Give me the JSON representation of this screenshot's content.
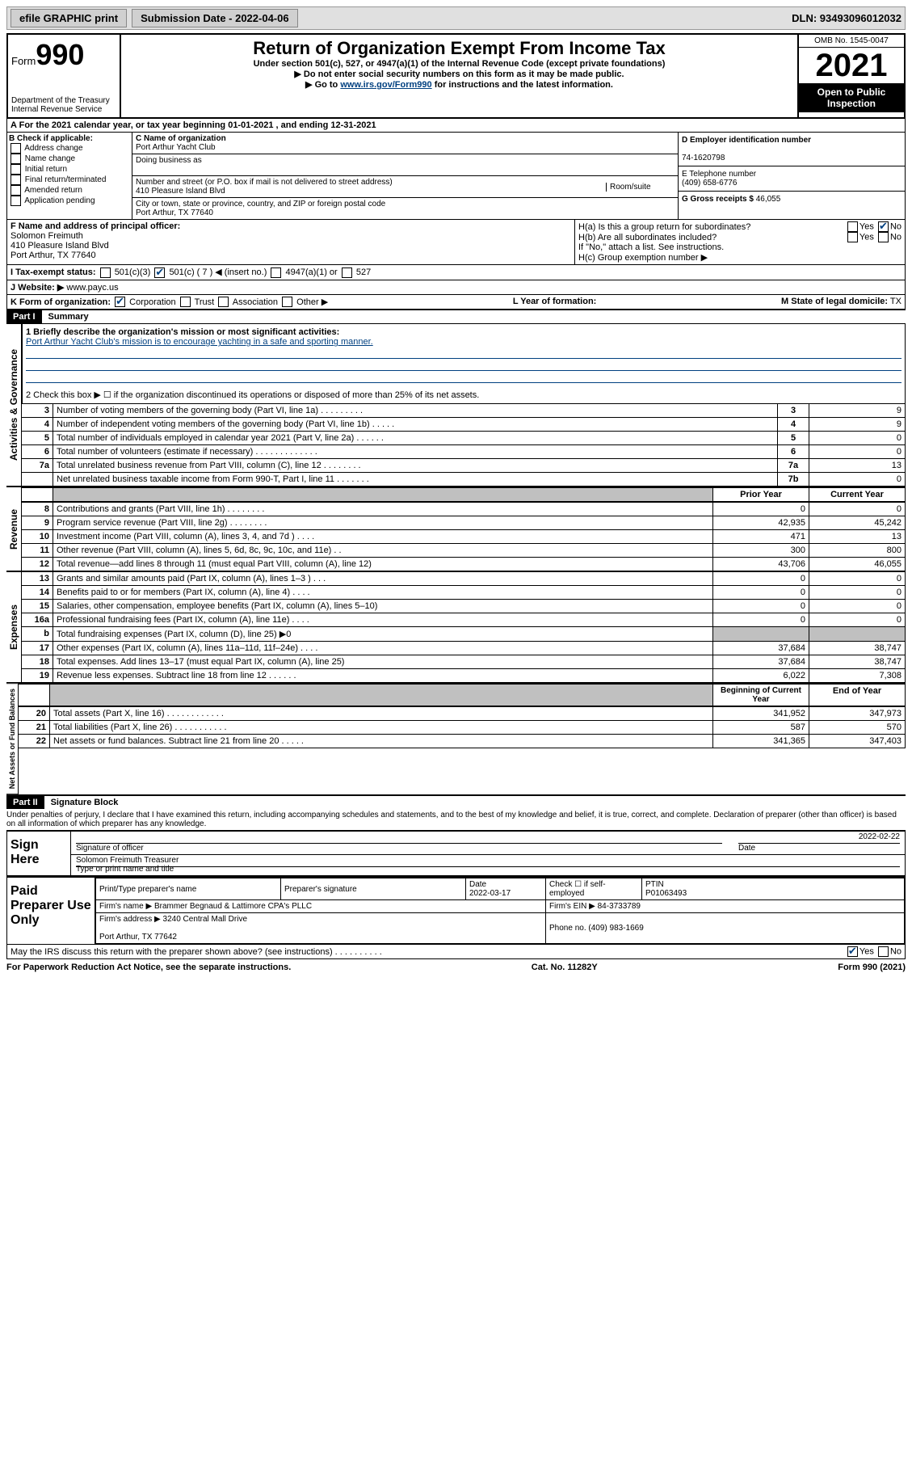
{
  "topbar": {
    "efile": "efile GRAPHIC print",
    "submission_label": "Submission Date - 2022-04-06",
    "dln": "DLN: 93493096012032"
  },
  "header": {
    "form_label": "Form",
    "form_number": "990",
    "dept": "Department of the Treasury",
    "irs": "Internal Revenue Service",
    "title": "Return of Organization Exempt From Income Tax",
    "subtitle": "Under section 501(c), 527, or 4947(a)(1) of the Internal Revenue Code (except private foundations)",
    "note1": "▶ Do not enter social security numbers on this form as it may be made public.",
    "note2_pre": "▶ Go to ",
    "note2_link": "www.irs.gov/Form990",
    "note2_post": " for instructions and the latest information.",
    "omb": "OMB No. 1545-0047",
    "year": "2021",
    "open": "Open to Public Inspection"
  },
  "lineA": "For the 2021 calendar year, or tax year beginning 01-01-2021   , and ending 12-31-2021",
  "boxB": {
    "title": "B Check if applicable:",
    "opts": [
      "Address change",
      "Name change",
      "Initial return",
      "Final return/terminated",
      "Amended return",
      "Application pending"
    ]
  },
  "boxC": {
    "label_name": "C Name of organization",
    "name": "Port Arthur Yacht Club",
    "dba_label": "Doing business as",
    "dba": "",
    "addr_label": "Number and street (or P.O. box if mail is not delivered to street address)",
    "room_label": "Room/suite",
    "addr": "410 Pleasure Island Blvd",
    "city_label": "City or town, state or province, country, and ZIP or foreign postal code",
    "city": "Port Arthur, TX  77640"
  },
  "boxD": {
    "label": "D Employer identification number",
    "value": "74-1620798"
  },
  "boxE": {
    "label": "E Telephone number",
    "value": "(409) 658-6776"
  },
  "boxG": {
    "label": "G Gross receipts $",
    "value": "46,055"
  },
  "boxF": {
    "label": "F Name and address of principal officer:",
    "name": "Solomon Freimuth",
    "addr1": "410 Pleasure Island Blvd",
    "addr2": "Port Arthur, TX  77640"
  },
  "boxH": {
    "ha": "H(a)  Is this a group return for subordinates?",
    "ha_yes": "Yes",
    "ha_no": "No",
    "hb": "H(b)  Are all subordinates included?",
    "hb_yes": "Yes",
    "hb_no": "No",
    "hb_note": "If \"No,\" attach a list. See instructions.",
    "hc": "H(c)  Group exemption number ▶"
  },
  "lineI": {
    "label": "I   Tax-exempt status:",
    "c1": "501(c)(3)",
    "c2": "501(c) ( 7 ) ◀ (insert no.)",
    "c3": "4947(a)(1) or",
    "c4": "527"
  },
  "lineJ": {
    "label": "J   Website: ▶",
    "value": "www.payc.us"
  },
  "lineK": {
    "label": "K Form of organization:",
    "o1": "Corporation",
    "o2": "Trust",
    "o3": "Association",
    "o4": "Other ▶"
  },
  "lineL": {
    "label": "L Year of formation:",
    "value": ""
  },
  "lineM": {
    "label": "M State of legal domicile:",
    "value": "TX"
  },
  "part1": {
    "header": "Part I",
    "title": "Summary",
    "q1_label": "1  Briefly describe the organization's mission or most significant activities:",
    "q1_text": "Port Arthur Yacht Club's mission is to encourage yachting in a safe and sporting manner.",
    "q2": "2   Check this box ▶ ☐  if the organization discontinued its operations or disposed of more than 25% of its net assets.",
    "rows_gov": [
      {
        "n": "3",
        "t": "Number of voting members of the governing body (Part VI, line 1a)  .   .   .   .   .   .   .   .   .",
        "k": "3",
        "v": "9"
      },
      {
        "n": "4",
        "t": "Number of independent voting members of the governing body (Part VI, line 1b)   .   .   .   .   .",
        "k": "4",
        "v": "9"
      },
      {
        "n": "5",
        "t": "Total number of individuals employed in calendar year 2021 (Part V, line 2a)   .   .   .   .   .   .",
        "k": "5",
        "v": "0"
      },
      {
        "n": "6",
        "t": "Total number of volunteers (estimate if necessary)   .   .   .   .   .   .   .   .   .   .   .   .   .",
        "k": "6",
        "v": "0"
      },
      {
        "n": "7a",
        "t": "Total unrelated business revenue from Part VIII, column (C), line 12   .   .   .   .   .   .   .   .",
        "k": "7a",
        "v": "13"
      },
      {
        "n": "",
        "t": "Net unrelated business taxable income from Form 990-T, Part I, line 11   .   .   .   .   .   .   .",
        "k": "7b",
        "v": "0"
      }
    ],
    "prior_label": "Prior Year",
    "current_label": "Current Year",
    "rows_rev": [
      {
        "n": "8",
        "t": "Contributions and grants (Part VIII, line 1h)   .   .   .   .   .   .   .   .",
        "p": "0",
        "c": "0"
      },
      {
        "n": "9",
        "t": "Program service revenue (Part VIII, line 2g)   .   .   .   .   .   .   .   .",
        "p": "42,935",
        "c": "45,242"
      },
      {
        "n": "10",
        "t": "Investment income (Part VIII, column (A), lines 3, 4, and 7d )   .   .   .   .",
        "p": "471",
        "c": "13"
      },
      {
        "n": "11",
        "t": "Other revenue (Part VIII, column (A), lines 5, 6d, 8c, 9c, 10c, and 11e)   .   .",
        "p": "300",
        "c": "800"
      },
      {
        "n": "12",
        "t": "Total revenue—add lines 8 through 11 (must equal Part VIII, column (A), line 12)",
        "p": "43,706",
        "c": "46,055"
      }
    ],
    "rows_exp": [
      {
        "n": "13",
        "t": "Grants and similar amounts paid (Part IX, column (A), lines 1–3 )   .   .   .",
        "p": "0",
        "c": "0"
      },
      {
        "n": "14",
        "t": "Benefits paid to or for members (Part IX, column (A), line 4)   .   .   .   .",
        "p": "0",
        "c": "0"
      },
      {
        "n": "15",
        "t": "Salaries, other compensation, employee benefits (Part IX, column (A), lines 5–10)",
        "p": "0",
        "c": "0"
      },
      {
        "n": "16a",
        "t": "Professional fundraising fees (Part IX, column (A), line 11e)   .   .   .   .",
        "p": "0",
        "c": "0"
      },
      {
        "n": "b",
        "t": "Total fundraising expenses (Part IX, column (D), line 25) ▶0",
        "p": "",
        "c": "",
        "shade": true
      },
      {
        "n": "17",
        "t": "Other expenses (Part IX, column (A), lines 11a–11d, 11f–24e)   .   .   .   .",
        "p": "37,684",
        "c": "38,747"
      },
      {
        "n": "18",
        "t": "Total expenses. Add lines 13–17 (must equal Part IX, column (A), line 25)",
        "p": "37,684",
        "c": "38,747"
      },
      {
        "n": "19",
        "t": "Revenue less expenses. Subtract line 18 from line 12   .   .   .   .   .   .",
        "p": "6,022",
        "c": "7,308"
      }
    ],
    "beg_label": "Beginning of Current Year",
    "end_label": "End of Year",
    "rows_net": [
      {
        "n": "20",
        "t": "Total assets (Part X, line 16)   .   .   .   .   .   .   .   .   .   .   .   .",
        "p": "341,952",
        "c": "347,973"
      },
      {
        "n": "21",
        "t": "Total liabilities (Part X, line 26)   .   .   .   .   .   .   .   .   .   .   .",
        "p": "587",
        "c": "570"
      },
      {
        "n": "22",
        "t": "Net assets or fund balances. Subtract line 21 from line 20   .   .   .   .   .",
        "p": "341,365",
        "c": "347,403"
      }
    ]
  },
  "vtabs": {
    "gov": "Activities & Governance",
    "rev": "Revenue",
    "exp": "Expenses",
    "net": "Net Assets or Fund Balances"
  },
  "part2": {
    "header": "Part II",
    "title": "Signature Block",
    "declaration": "Under penalties of perjury, I declare that I have examined this return, including accompanying schedules and statements, and to the best of my knowledge and belief, it is true, correct, and complete. Declaration of preparer (other than officer) is based on all information of which preparer has any knowledge.",
    "sign_here": "Sign Here",
    "sig_officer": "Signature of officer",
    "date_label": "Date",
    "sig_date": "2022-02-22",
    "officer_name": "Solomon Freimuth Treasurer",
    "name_label": "Type or print name and title",
    "paid": "Paid Preparer Use Only",
    "prep_name_label": "Print/Type preparer's name",
    "prep_sig_label": "Preparer's signature",
    "prep_date_label": "Date",
    "prep_date": "2022-03-17",
    "check_label": "Check ☐ if self-employed",
    "ptin_label": "PTIN",
    "ptin": "P01063493",
    "firm_name_label": "Firm's name    ▶",
    "firm_name": "Brammer Begnaud & Lattimore CPA's PLLC",
    "firm_ein_label": "Firm's EIN ▶",
    "firm_ein": "84-3733789",
    "firm_addr_label": "Firm's address ▶",
    "firm_addr1": "3240 Central Mall Drive",
    "firm_addr2": "Port Arthur, TX  77642",
    "phone_label": "Phone no.",
    "phone": "(409) 983-1669",
    "may_irs": "May the IRS discuss this return with the preparer shown above? (see instructions)   .   .   .   .   .   .   .   .   .   .",
    "yes": "Yes",
    "no": "No"
  },
  "footer": {
    "pra": "For Paperwork Reduction Act Notice, see the separate instructions.",
    "cat": "Cat. No. 11282Y",
    "form": "Form 990 (2021)"
  }
}
